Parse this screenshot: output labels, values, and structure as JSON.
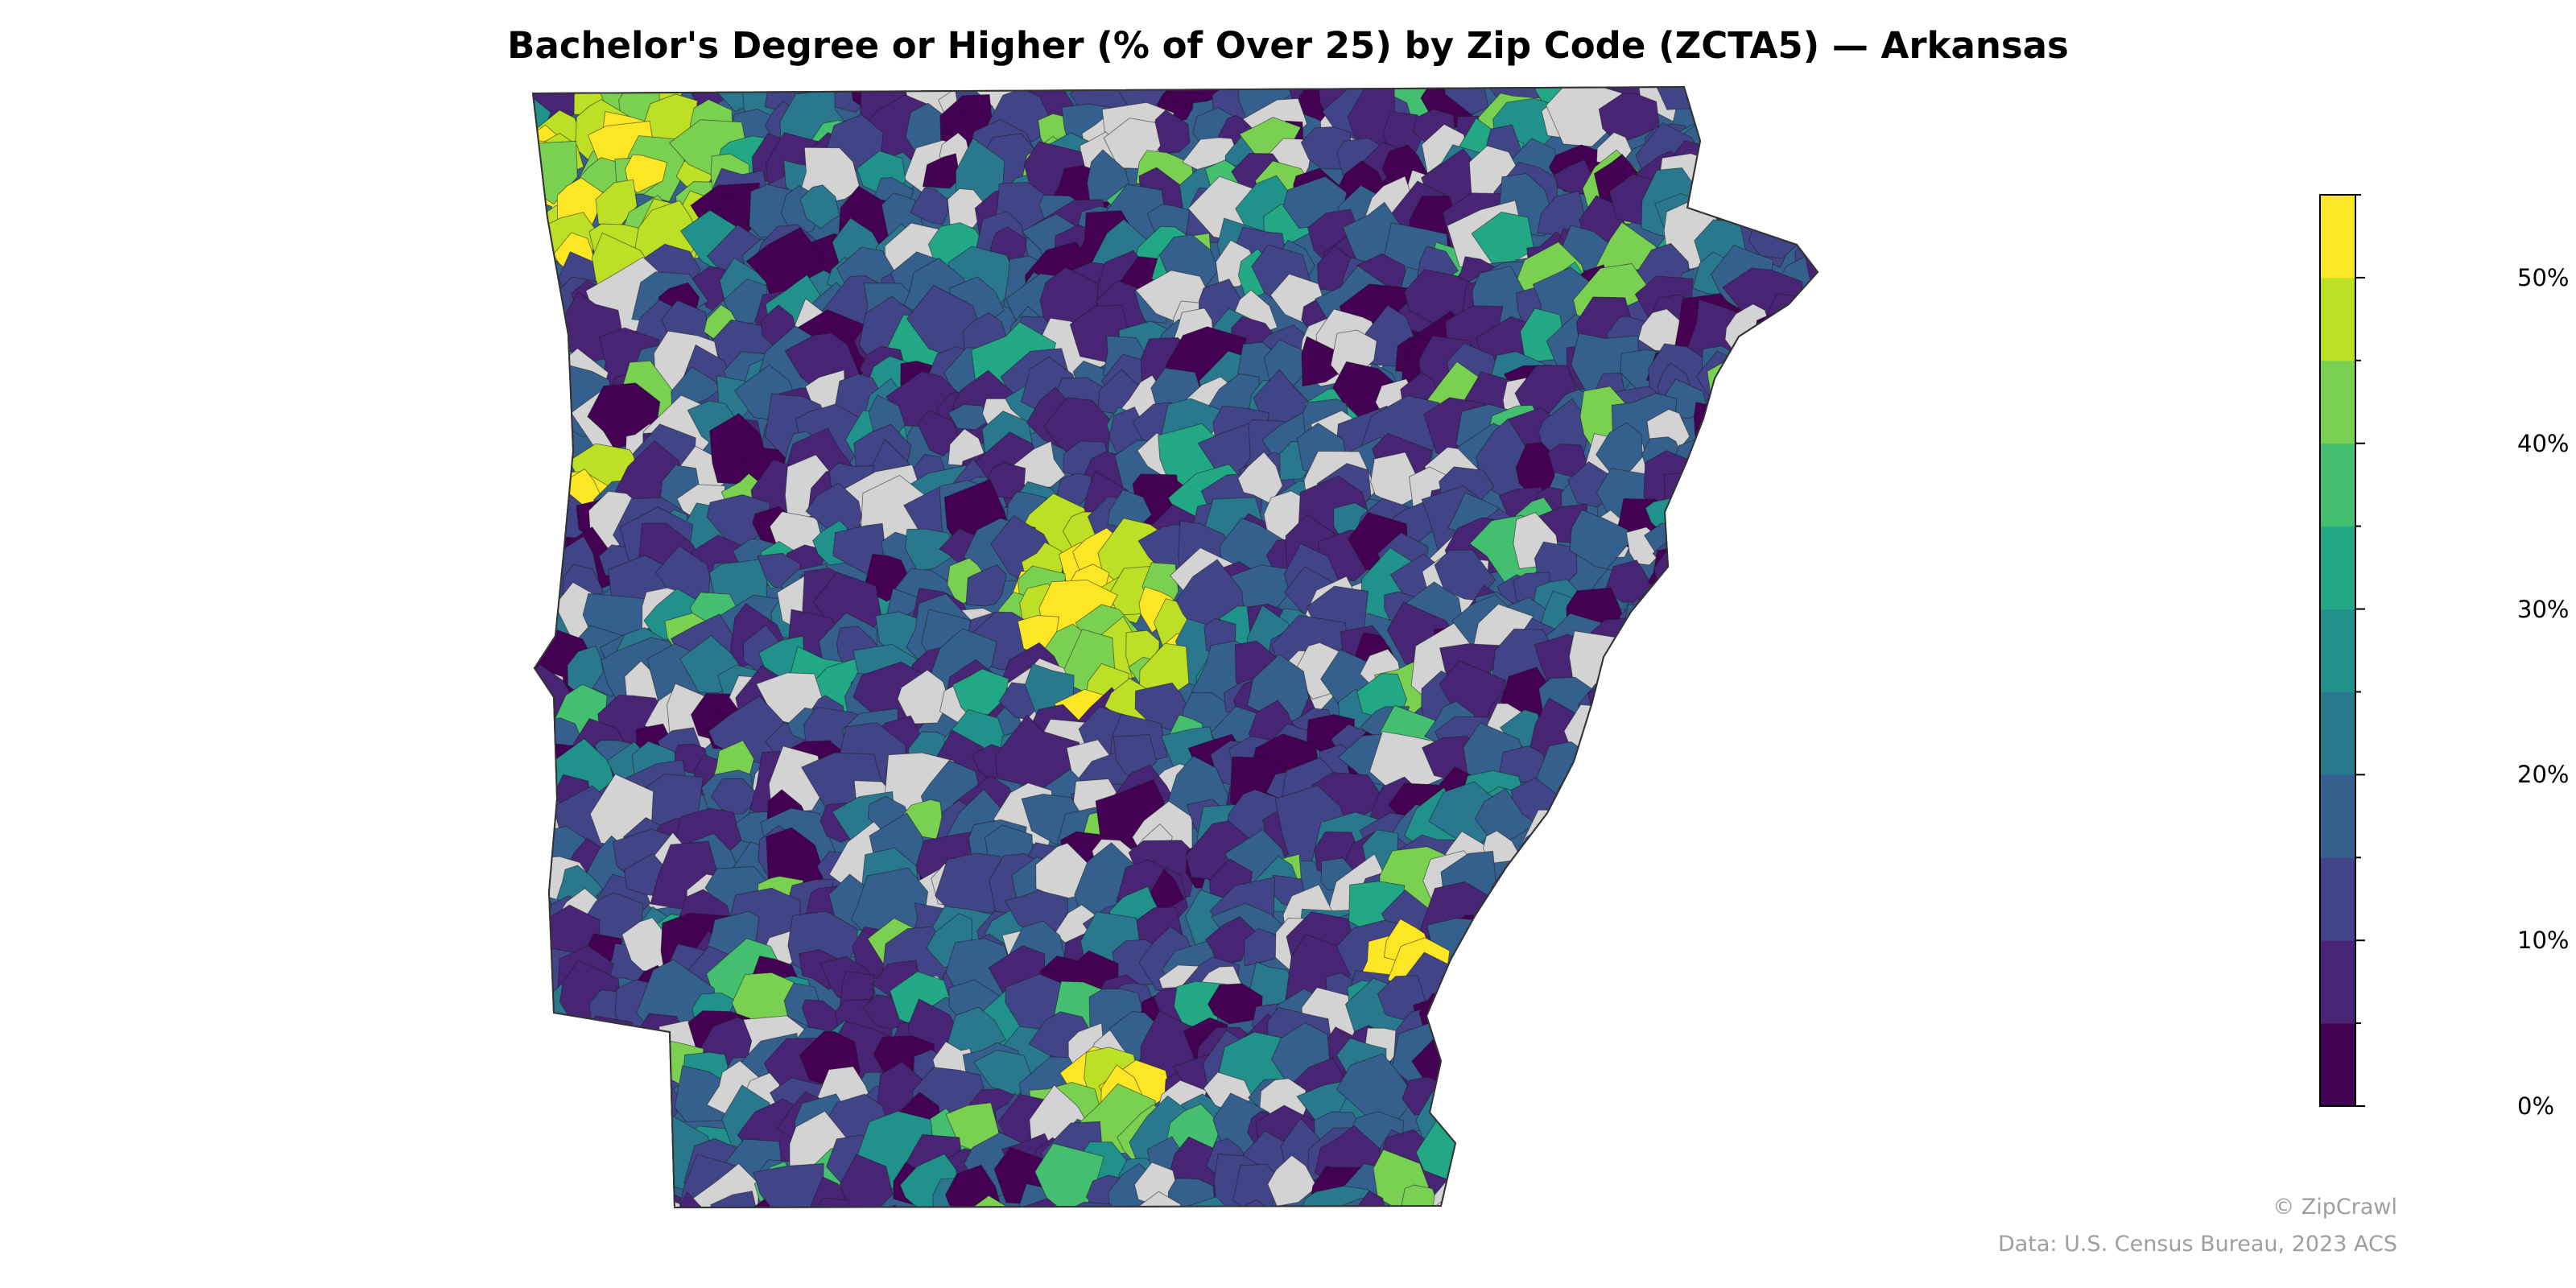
{
  "title": "Bachelor's Degree or Higher (% of Over 25) by Zip Code (ZCTA5) — Arkansas",
  "legend": {
    "min": 0,
    "max": 55,
    "bins": [
      {
        "from": 0,
        "to": 5,
        "color": "#440154"
      },
      {
        "from": 5,
        "to": 10,
        "color": "#482475"
      },
      {
        "from": 10,
        "to": 15,
        "color": "#414487"
      },
      {
        "from": 15,
        "to": 20,
        "color": "#355f8d"
      },
      {
        "from": 20,
        "to": 25,
        "color": "#2a788e"
      },
      {
        "from": 25,
        "to": 30,
        "color": "#21918c"
      },
      {
        "from": 30,
        "to": 35,
        "color": "#22a884"
      },
      {
        "from": 35,
        "to": 40,
        "color": "#44bf70"
      },
      {
        "from": 40,
        "to": 45,
        "color": "#7ad151"
      },
      {
        "from": 45,
        "to": 50,
        "color": "#bddf26"
      },
      {
        "from": 50,
        "to": 55,
        "color": "#fde725"
      }
    ],
    "ticks": [
      {
        "value": 0,
        "label": "0%"
      },
      {
        "value": 10,
        "label": "10%"
      },
      {
        "value": 20,
        "label": "20%"
      },
      {
        "value": 30,
        "label": "30%"
      },
      {
        "value": 40,
        "label": "40%"
      },
      {
        "value": 50,
        "label": "50%"
      }
    ]
  },
  "no_data_color": "#d3d3d3",
  "credits": {
    "line1": "© ZipCrawl",
    "line2": "Data: U.S. Census Bureau, 2023 ACS"
  }
}
